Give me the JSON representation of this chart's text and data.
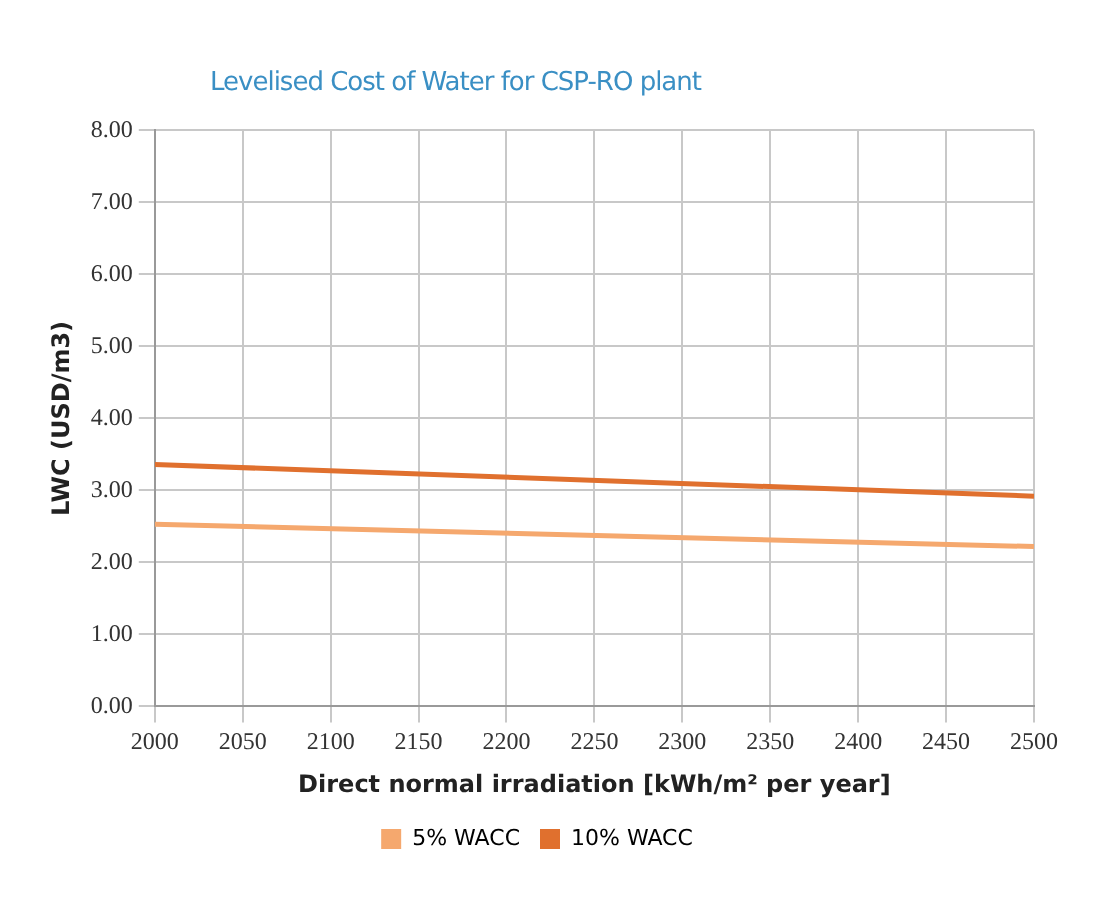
{
  "chart_data": {
    "type": "line",
    "title": "Levelised Cost of Water for CSP-RO plant",
    "xlabel": "Direct normal irradiation [kWh/m² per year]",
    "ylabel": "LWC (USD/m3)",
    "x": [
      2000,
      2500
    ],
    "series": [
      {
        "name": "5% WACC",
        "color": "#f5a86e",
        "values": [
          2.53,
          2.22
        ]
      },
      {
        "name": "10% WACC",
        "color": "#e0702e",
        "values": [
          3.36,
          2.92
        ]
      }
    ],
    "xlim": [
      2000,
      2500
    ],
    "xticks": [
      2000,
      2050,
      2100,
      2150,
      2200,
      2250,
      2300,
      2350,
      2400,
      2450,
      2500
    ],
    "ylim": [
      0,
      8
    ],
    "yticks": [
      {
        "value": 0,
        "label": "0.00"
      },
      {
        "value": 1,
        "label": "1.00"
      },
      {
        "value": 2,
        "label": "2.00"
      },
      {
        "value": 3,
        "label": "3.00"
      },
      {
        "value": 4,
        "label": "4.00"
      },
      {
        "value": 5,
        "label": "5.00"
      },
      {
        "value": 6,
        "label": "6.00"
      },
      {
        "value": 7,
        "label": "7.00"
      },
      {
        "value": 8,
        "label": "8.00"
      }
    ],
    "grid": true,
    "legend": "bottom",
    "marker": "none",
    "line_style": "solid"
  }
}
